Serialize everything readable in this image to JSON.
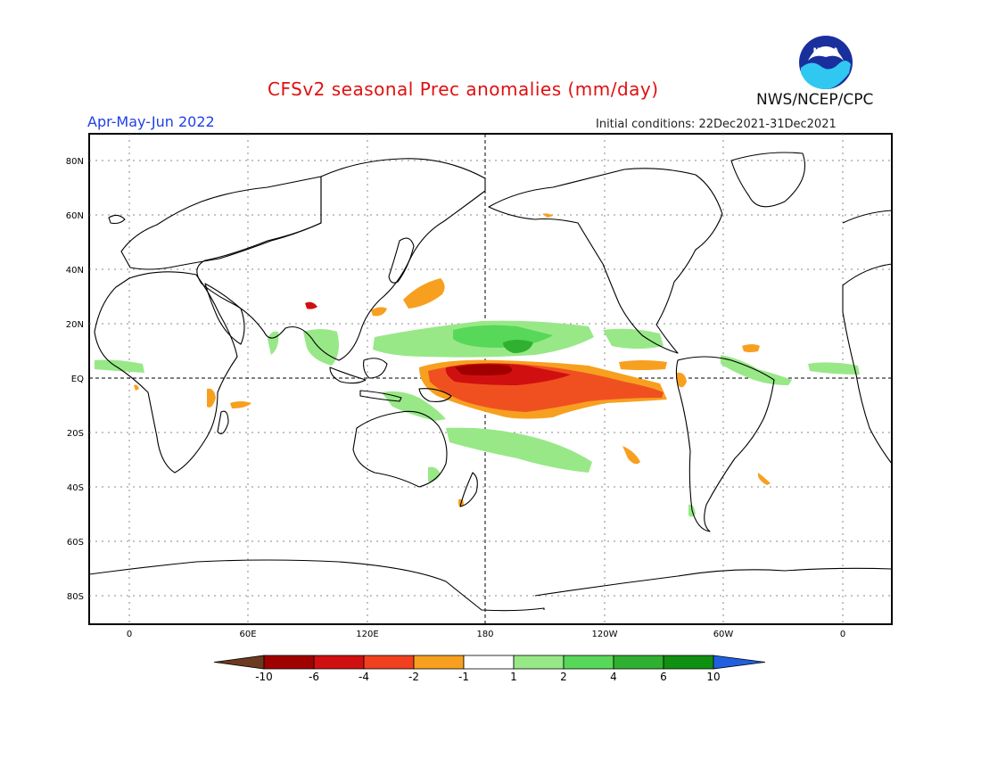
{
  "header": {
    "title": "CFSv2 seasonal Prec anomalies (mm/day)",
    "period": "Apr-May-Jun 2022",
    "initial_conditions": "Initial conditions: 22Dec2021-31Dec2021",
    "agency": "NWS/NCEP/CPC",
    "logo_text": "NOAA"
  },
  "map": {
    "lat_labels": [
      "80N",
      "60N",
      "40N",
      "20N",
      "EQ",
      "20S",
      "40S",
      "60S",
      "80S"
    ],
    "lon_labels": [
      "0",
      "60E",
      "120E",
      "180",
      "120W",
      "60W",
      "0"
    ]
  },
  "colorbar": {
    "tick_labels": [
      "-10",
      "-6",
      "-4",
      "-2",
      "-1",
      "1",
      "2",
      "4",
      "6",
      "10"
    ],
    "colors": [
      "#6b3a1f",
      "#a00000",
      "#d01010",
      "#f04020",
      "#f7a020",
      "#ffffff",
      "#98e888",
      "#58d858",
      "#30b030",
      "#109010",
      "#2060e0"
    ]
  },
  "anomalies": {
    "dry": "#f7a020",
    "dry_strong": "#f05020",
    "dry_stronger": "#d01010",
    "dry_extreme": "#a00000",
    "wet": "#98e888",
    "wet_strong": "#58d858",
    "wet_stronger": "#30b030"
  }
}
